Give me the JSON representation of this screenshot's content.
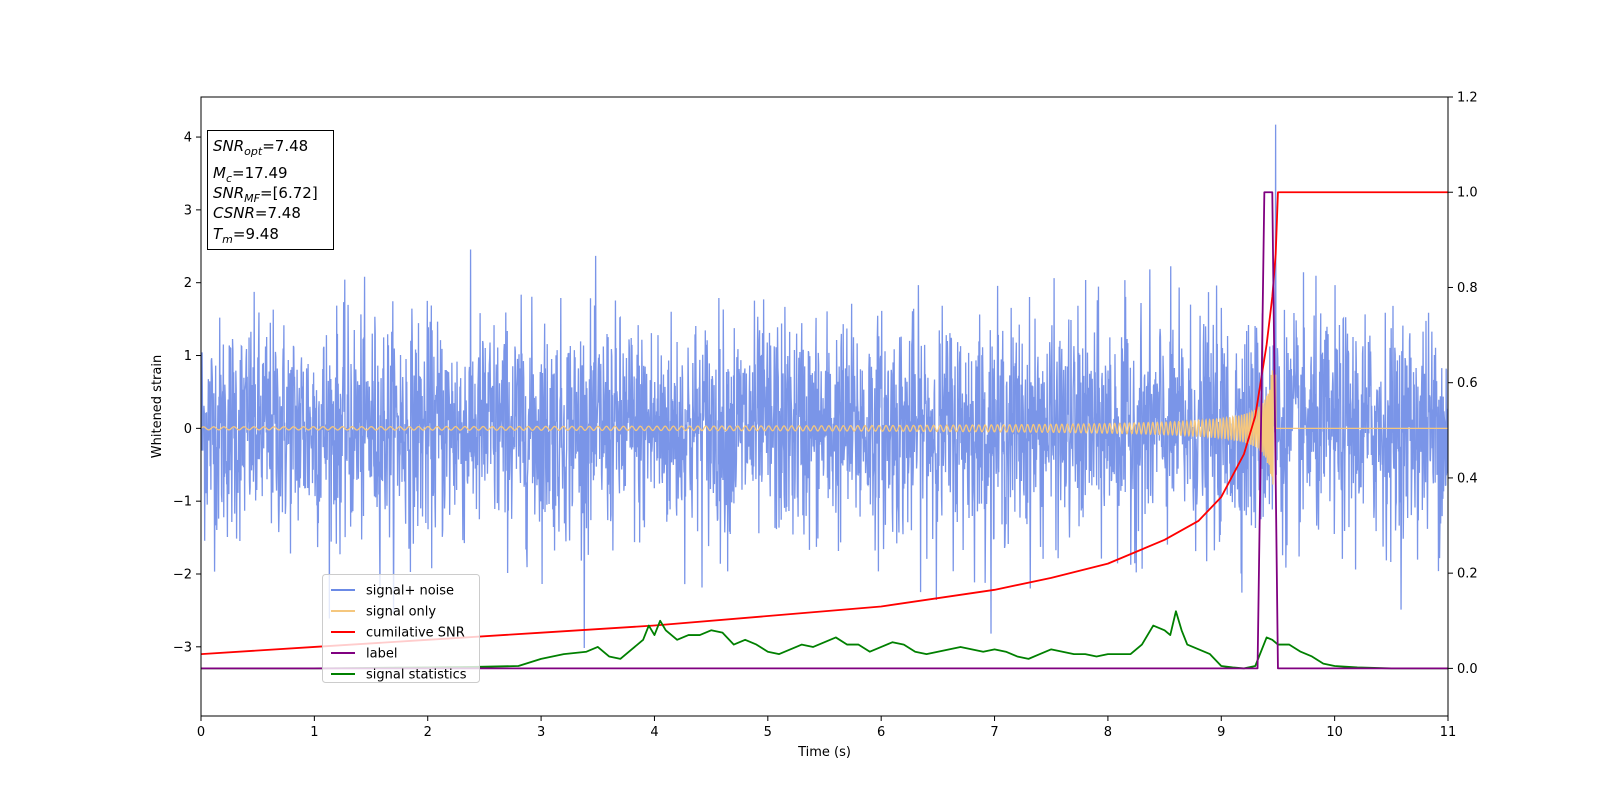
{
  "chart_data": {
    "type": "line",
    "title": "",
    "xlabel": "Time (s)",
    "ylabel": "Whitened strain",
    "xlim": [
      0,
      11
    ],
    "ylim": [
      -3.95,
      4.55
    ],
    "y2lim": [
      -0.1,
      1.2
    ],
    "x_ticks": [
      0,
      1,
      2,
      3,
      4,
      5,
      6,
      7,
      8,
      9,
      10,
      11
    ],
    "x_tick_labels": [
      "0",
      "1",
      "2",
      "3",
      "4",
      "5",
      "6",
      "7",
      "8",
      "9",
      "10",
      "11"
    ],
    "y_ticks": [
      -3,
      -2,
      -1,
      0,
      1,
      2,
      3,
      4
    ],
    "y_tick_labels": [
      "−3",
      "−2",
      "−1",
      "0",
      "1",
      "2",
      "3",
      "4"
    ],
    "y2_ticks": [
      0.0,
      0.2,
      0.4,
      0.6,
      0.8,
      1.0,
      1.2
    ],
    "y2_tick_labels": [
      "0.0",
      "0.2",
      "0.4",
      "0.6",
      "0.8",
      "1.0",
      "1.2"
    ],
    "grid": false,
    "legend_position": "lower-left",
    "series": [
      {
        "name": "signal+ noise",
        "color": "#6b8ae6",
        "axis": "left",
        "noise_std": 0.75,
        "range": [
          -3.2,
          4.2
        ],
        "peak": {
          "x": 9.48,
          "y": 4.17
        }
      },
      {
        "name": "signal only",
        "color": "#f5c77e",
        "axis": "left",
        "amplitude_start": 0.02,
        "amplitude_peak": 0.8,
        "t_merge": 9.48
      },
      {
        "name": "cumilative SNR",
        "color": "#ff0000",
        "axis": "right",
        "x": [
          0,
          1,
          2,
          3,
          4,
          5,
          6,
          7,
          7.5,
          8,
          8.5,
          8.8,
          9.0,
          9.2,
          9.3,
          9.4,
          9.45,
          9.48,
          9.5,
          11
        ],
        "y": [
          0.03,
          0.045,
          0.06,
          0.075,
          0.09,
          0.11,
          0.13,
          0.165,
          0.19,
          0.22,
          0.27,
          0.31,
          0.36,
          0.45,
          0.53,
          0.68,
          0.78,
          0.87,
          1.0,
          1.0
        ]
      },
      {
        "name": "label",
        "color": "#800080",
        "axis": "right",
        "x": [
          0,
          9.32,
          9.38,
          9.45,
          9.5,
          11
        ],
        "y": [
          0,
          0,
          1,
          1,
          0,
          0
        ]
      },
      {
        "name": "signal statistics",
        "color": "#008000",
        "axis": "right",
        "x": [
          0,
          1,
          2,
          2.4,
          2.8,
          3.0,
          3.2,
          3.4,
          3.5,
          3.6,
          3.7,
          3.8,
          3.9,
          3.95,
          4.0,
          4.05,
          4.1,
          4.2,
          4.3,
          4.4,
          4.5,
          4.6,
          4.7,
          4.8,
          4.9,
          5.0,
          5.1,
          5.2,
          5.3,
          5.4,
          5.5,
          5.6,
          5.7,
          5.8,
          5.9,
          6.0,
          6.1,
          6.2,
          6.3,
          6.4,
          6.5,
          6.6,
          6.7,
          6.8,
          6.9,
          7.0,
          7.1,
          7.2,
          7.3,
          7.4,
          7.5,
          7.6,
          7.7,
          7.8,
          7.9,
          8.0,
          8.1,
          8.2,
          8.3,
          8.4,
          8.5,
          8.55,
          8.6,
          8.65,
          8.7,
          8.8,
          8.9,
          9.0,
          9.1,
          9.2,
          9.3,
          9.4,
          9.45,
          9.5,
          9.6,
          9.7,
          9.8,
          9.9,
          10.0,
          10.2,
          10.5,
          11.0
        ],
        "y": [
          0.0,
          0.0,
          0.002,
          0.003,
          0.005,
          0.02,
          0.03,
          0.035,
          0.045,
          0.025,
          0.02,
          0.04,
          0.06,
          0.09,
          0.07,
          0.1,
          0.08,
          0.06,
          0.07,
          0.07,
          0.08,
          0.075,
          0.05,
          0.06,
          0.05,
          0.035,
          0.03,
          0.04,
          0.05,
          0.045,
          0.055,
          0.065,
          0.05,
          0.05,
          0.035,
          0.045,
          0.055,
          0.05,
          0.035,
          0.03,
          0.035,
          0.04,
          0.045,
          0.04,
          0.035,
          0.04,
          0.035,
          0.025,
          0.02,
          0.03,
          0.04,
          0.035,
          0.03,
          0.03,
          0.025,
          0.03,
          0.03,
          0.03,
          0.05,
          0.09,
          0.08,
          0.07,
          0.12,
          0.08,
          0.05,
          0.04,
          0.03,
          0.005,
          0.002,
          0.0,
          0.005,
          0.065,
          0.06,
          0.05,
          0.05,
          0.035,
          0.025,
          0.01,
          0.005,
          0.002,
          0.0,
          0.0
        ]
      }
    ]
  },
  "info_box": {
    "lines": [
      {
        "var": "SNR",
        "sub": "opt",
        "value": "=7.48"
      },
      {
        "var": "M",
        "sub": "c",
        "value": "=17.49"
      },
      {
        "var": "SNR",
        "sub": "MF",
        "value": "=[6.72]"
      },
      {
        "var": "CSNR",
        "sub": "",
        "value": "=7.48"
      },
      {
        "var": "T",
        "sub": "m",
        "value": "=9.48"
      }
    ]
  }
}
